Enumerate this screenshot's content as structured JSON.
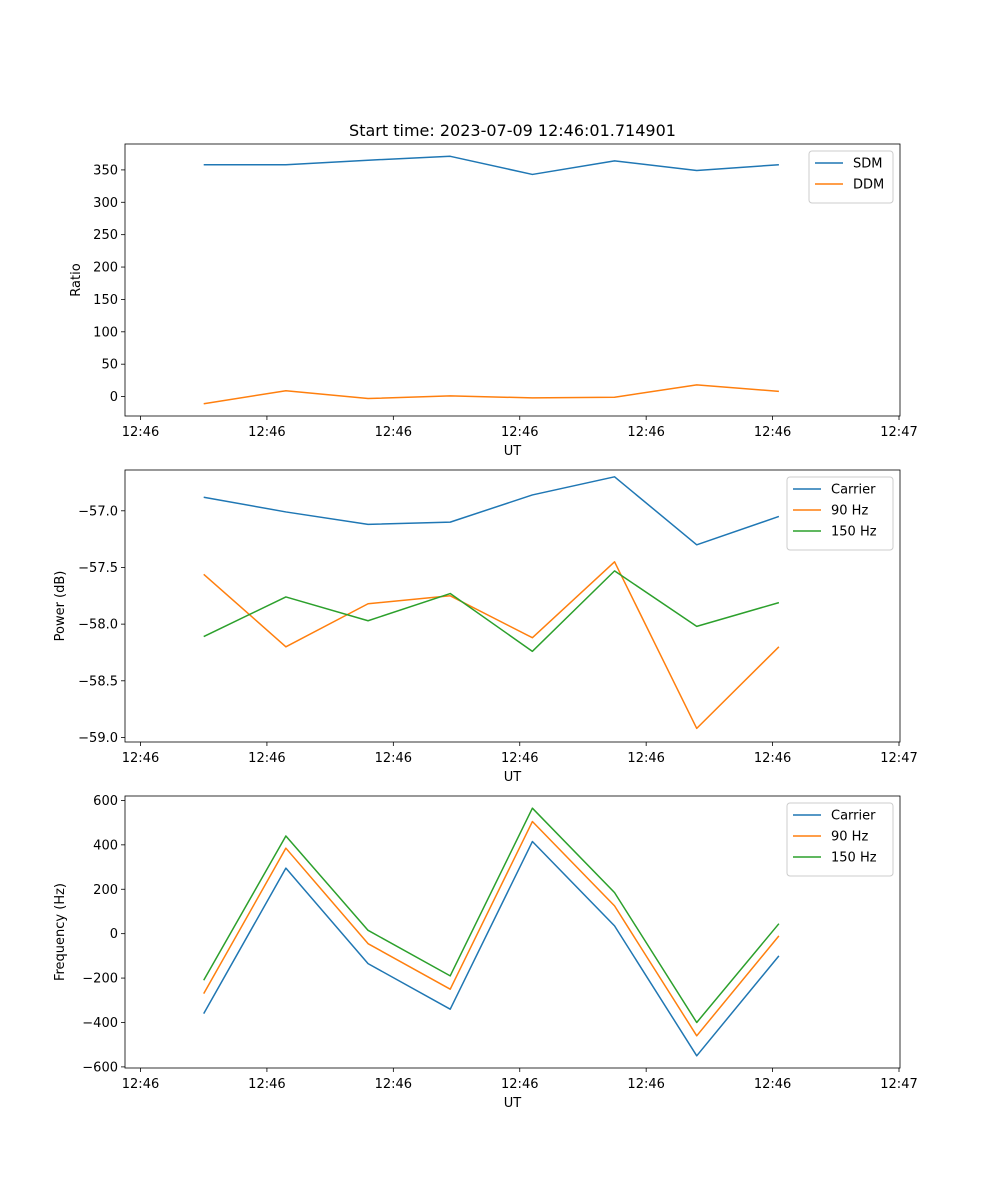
{
  "figure": {
    "title": "Start time: 2023-07-09 12:46:01.714901"
  },
  "chart_data": [
    {
      "type": "line",
      "title": "Start time: 2023-07-09 12:46:01.714901",
      "xlabel": "UT",
      "ylabel": "Ratio",
      "x_tick_labels": [
        "12:46",
        "12:46",
        "12:46",
        "12:46",
        "12:46",
        "12:46",
        "12:47"
      ],
      "xlim": [
        0,
        6
      ],
      "x": [
        0.5,
        1.15,
        1.8,
        2.45,
        3.1,
        3.75,
        4.4,
        5.05
      ],
      "ylim": [
        -30,
        390
      ],
      "yticks": [
        0,
        50,
        100,
        150,
        200,
        250,
        300,
        350
      ],
      "legend": "top-right",
      "series": [
        {
          "name": "SDM",
          "color": "#1f77b4",
          "values": [
            358,
            358,
            365,
            371,
            343,
            364,
            349,
            358
          ]
        },
        {
          "name": "DDM",
          "color": "#ff7f0e",
          "values": [
            -11,
            9,
            -3,
            1,
            -2,
            -1,
            18,
            8
          ]
        }
      ]
    },
    {
      "type": "line",
      "title": "",
      "xlabel": "UT",
      "ylabel": "Power (dB)",
      "x_tick_labels": [
        "12:46",
        "12:46",
        "12:46",
        "12:46",
        "12:46",
        "12:46",
        "12:47"
      ],
      "xlim": [
        0,
        6
      ],
      "x": [
        0.5,
        1.15,
        1.8,
        2.45,
        3.1,
        3.75,
        4.4,
        5.05
      ],
      "ylim": [
        -59.04,
        -56.64
      ],
      "yticks": [
        -59.0,
        -58.5,
        -58.0,
        -57.5,
        -57.0
      ],
      "ytick_labels": [
        "−59.0",
        "−58.5",
        "−58.0",
        "−57.5",
        "−57.0"
      ],
      "legend": "top-right",
      "series": [
        {
          "name": "Carrier",
          "color": "#1f77b4",
          "values": [
            -56.88,
            -57.01,
            -57.12,
            -57.1,
            -56.86,
            -56.7,
            -57.3,
            -57.05
          ]
        },
        {
          "name": "90 Hz",
          "color": "#ff7f0e",
          "values": [
            -57.56,
            -58.2,
            -57.82,
            -57.75,
            -58.12,
            -57.45,
            -58.92,
            -58.2
          ]
        },
        {
          "name": "150 Hz",
          "color": "#2ca02c",
          "values": [
            -58.11,
            -57.76,
            -57.97,
            -57.73,
            -58.24,
            -57.53,
            -58.02,
            -57.81
          ]
        }
      ]
    },
    {
      "type": "line",
      "title": "",
      "xlabel": "UT",
      "ylabel": "Frequency (Hz)",
      "x_tick_labels": [
        "12:46",
        "12:46",
        "12:46",
        "12:46",
        "12:46",
        "12:46",
        "12:47"
      ],
      "xlim": [
        0,
        6
      ],
      "x": [
        0.5,
        1.15,
        1.8,
        2.45,
        3.1,
        3.75,
        4.4,
        5.05
      ],
      "ylim": [
        -605,
        620
      ],
      "yticks": [
        -600,
        -400,
        -200,
        0,
        200,
        400,
        600
      ],
      "ytick_labels": [
        "−600",
        "−400",
        "−200",
        "0",
        "200",
        "400",
        "600"
      ],
      "legend": "top-right",
      "series": [
        {
          "name": "Carrier",
          "color": "#1f77b4",
          "values": [
            -360,
            295,
            -135,
            -340,
            415,
            35,
            -550,
            -100
          ]
        },
        {
          "name": "90 Hz",
          "color": "#ff7f0e",
          "values": [
            -270,
            385,
            -45,
            -250,
            505,
            125,
            -460,
            -10
          ]
        },
        {
          "name": "150 Hz",
          "color": "#2ca02c",
          "values": [
            -210,
            440,
            15,
            -190,
            565,
            185,
            -400,
            45
          ]
        }
      ]
    }
  ]
}
